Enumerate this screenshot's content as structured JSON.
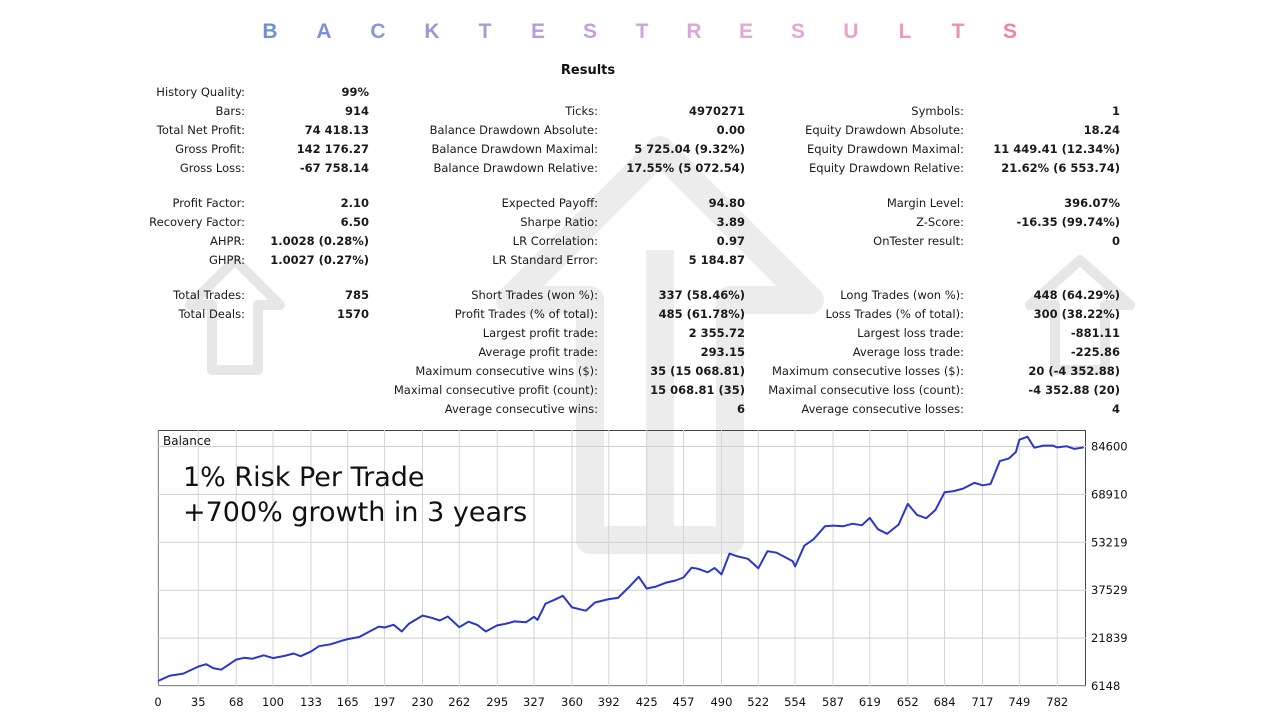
{
  "banner": {
    "letters": [
      "B",
      "A",
      "C",
      "K",
      "T",
      "E",
      "S",
      "T",
      "R",
      "E",
      "S",
      "U",
      "L",
      "T",
      "S"
    ],
    "colors": [
      "#6f93d0",
      "#7d92d3",
      "#8e95d6",
      "#9b98d8",
      "#aa9bd9",
      "#b49ddb",
      "#c3a0dc",
      "#cfa4dc",
      "#d9a6da",
      "#e2a6d7",
      "#e8a5d2",
      "#ec9fca",
      "#ee98c0",
      "#f08fb6",
      "#ef83a9"
    ]
  },
  "results_title": "Results",
  "stats": [
    {
      "label": "History Quality:",
      "value": "99%"
    },
    {
      "label": "Bars:",
      "value": "914"
    },
    {
      "label": "Ticks:",
      "value": "4970271"
    },
    {
      "label": "Symbols:",
      "value": "1"
    },
    {
      "label": "Total Net Profit:",
      "value": "74 418.13"
    },
    {
      "label": "Balance Drawdown Absolute:",
      "value": "0.00"
    },
    {
      "label": "Equity Drawdown Absolute:",
      "value": "18.24"
    },
    {
      "label": "Gross Profit:",
      "value": "142 176.27"
    },
    {
      "label": "Balance Drawdown Maximal:",
      "value": "5 725.04 (9.32%)"
    },
    {
      "label": "Equity Drawdown Maximal:",
      "value": "11 449.41 (12.34%)"
    },
    {
      "label": "Gross Loss:",
      "value": "-67 758.14"
    },
    {
      "label": "Balance Drawdown Relative:",
      "value": "17.55% (5 072.54)"
    },
    {
      "label": "Equity Drawdown Relative:",
      "value": "21.62% (6 553.74)"
    },
    {
      "label": "Profit Factor:",
      "value": "2.10"
    },
    {
      "label": "Expected Payoff:",
      "value": "94.80"
    },
    {
      "label": "Margin Level:",
      "value": "396.07%"
    },
    {
      "label": "Recovery Factor:",
      "value": "6.50"
    },
    {
      "label": "Sharpe Ratio:",
      "value": "3.89"
    },
    {
      "label": "Z-Score:",
      "value": "-16.35 (99.74%)"
    },
    {
      "label": "AHPR:",
      "value": "1.0028 (0.28%)"
    },
    {
      "label": "LR Correlation:",
      "value": "0.97"
    },
    {
      "label": "OnTester result:",
      "value": "0"
    },
    {
      "label": "GHPR:",
      "value": "1.0027 (0.27%)"
    },
    {
      "label": "LR Standard Error:",
      "value": "5 184.87"
    },
    {
      "label": "Total Trades:",
      "value": "785"
    },
    {
      "label": "Short Trades (won %):",
      "value": "337 (58.46%)"
    },
    {
      "label": "Long Trades (won %):",
      "value": "448 (64.29%)"
    },
    {
      "label": "Total Deals:",
      "value": "1570"
    },
    {
      "label": "Profit Trades (% of total):",
      "value": "485 (61.78%)"
    },
    {
      "label": "Loss Trades (% of total):",
      "value": "300 (38.22%)"
    },
    {
      "label": "Largest profit trade:",
      "value": "2 355.72"
    },
    {
      "label": "Largest loss trade:",
      "value": "-881.11"
    },
    {
      "label": "Average profit trade:",
      "value": "293.15"
    },
    {
      "label": "Average loss trade:",
      "value": "-225.86"
    },
    {
      "label": "Maximum consecutive wins ($):",
      "value": "35 (15 068.81)"
    },
    {
      "label": "Maximum consecutive losses ($):",
      "value": "20 (-4 352.88)"
    },
    {
      "label": "Maximal consecutive profit (count):",
      "value": "15 068.81 (35)"
    },
    {
      "label": "Maximal consecutive loss (count):",
      "value": "-4 352.88 (20)"
    },
    {
      "label": "Average consecutive wins:",
      "value": "6"
    },
    {
      "label": "Average consecutive losses:",
      "value": "4"
    }
  ],
  "overlay": {
    "line1": "1% Risk Per Trade",
    "line2": "+700% growth in 3 years"
  },
  "chart_data": {
    "type": "line",
    "title": "Balance",
    "xlabel": "",
    "ylabel": "",
    "x_ticks": [
      0,
      35,
      68,
      100,
      133,
      165,
      197,
      230,
      262,
      295,
      327,
      360,
      392,
      425,
      457,
      490,
      522,
      554,
      587,
      619,
      652,
      684,
      717,
      749,
      782
    ],
    "y_ticks": [
      6148,
      21839,
      37529,
      53219,
      68910,
      84600
    ],
    "xlim": [
      0,
      807
    ],
    "ylim": [
      6148,
      90000
    ],
    "line_color": "#2a37c9",
    "grid": true,
    "series": [
      {
        "x": [
          0,
          10,
          22,
          35,
          42,
          48,
          55,
          68,
          75,
          82,
          92,
          100,
          110,
          118,
          124,
          133,
          140,
          150,
          160,
          165,
          175,
          185,
          192,
          197,
          205,
          212,
          218,
          230,
          238,
          245,
          252,
          262,
          270,
          278,
          285,
          295,
          302,
          310,
          320,
          327,
          330,
          337,
          345,
          352,
          360,
          372,
          380,
          392,
          400,
          410,
          418,
          425,
          433,
          442,
          450,
          457,
          464,
          470,
          478,
          484,
          490,
          497,
          504,
          513,
          522,
          530,
          538,
          546,
          552,
          554,
          562,
          570,
          580,
          587,
          596,
          604,
          612,
          619,
          626,
          634,
          644,
          652,
          660,
          668,
          676,
          684,
          692,
          700,
          710,
          717,
          724,
          732,
          740,
          746,
          749,
          756,
          762,
          770,
          778,
          782,
          790,
          797,
          805
        ],
        "y": [
          7800,
          9500,
          10200,
          12500,
          13300,
          12000,
          11500,
          14800,
          15400,
          15100,
          16200,
          15300,
          16000,
          16800,
          15900,
          17400,
          19200,
          19800,
          21000,
          21500,
          22200,
          24200,
          25600,
          25300,
          26200,
          24000,
          26500,
          29200,
          28500,
          27600,
          28900,
          25400,
          27200,
          26100,
          24000,
          26000,
          26500,
          27300,
          27000,
          28800,
          27800,
          33100,
          34400,
          35700,
          31900,
          30800,
          33500,
          34600,
          35000,
          38700,
          41900,
          38100,
          38700,
          40000,
          40700,
          41700,
          44900,
          44500,
          43400,
          44800,
          42700,
          49500,
          48600,
          47800,
          44700,
          50300,
          49800,
          48200,
          47000,
          45300,
          52100,
          54200,
          58500,
          58700,
          58500,
          59300,
          58800,
          61200,
          57500,
          56000,
          59000,
          65800,
          62200,
          61100,
          63800,
          69600,
          70000,
          70800,
          72700,
          71900,
          72300,
          79800,
          80700,
          82800,
          86800,
          87800,
          84200,
          84900,
          84900,
          84300,
          84700,
          83800,
          84300
        ]
      }
    ]
  }
}
